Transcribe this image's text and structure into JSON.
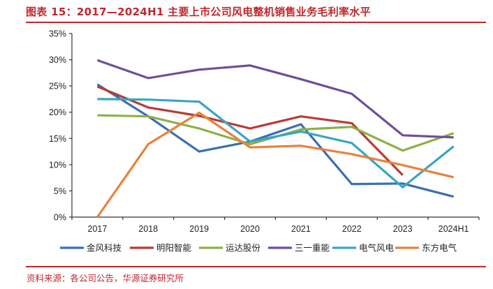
{
  "header": {
    "title": "图表 15：2017—2024H1 主要上市公司风电整机销售业务毛利率水平"
  },
  "footer": {
    "source": "资料来源：各公司公告，华源证券研究所"
  },
  "chart_data": {
    "type": "line",
    "title": "2017—2024H1 主要上市公司风电整机销售业务毛利率水平",
    "xlabel": "",
    "ylabel": "",
    "x": [
      "2017",
      "2018",
      "2019",
      "2020",
      "2021",
      "2022",
      "2023",
      "2024H1"
    ],
    "yticks": [
      "0%",
      "5%",
      "10%",
      "15%",
      "20%",
      "25%",
      "30%",
      "35%"
    ],
    "ylim": [
      0,
      35
    ],
    "grid": false,
    "legend_position": "bottom",
    "series": [
      {
        "name": "金风科技",
        "color": "#3a6fb5",
        "values": [
          25.3,
          19.2,
          12.5,
          14.4,
          17.7,
          6.3,
          6.4,
          3.9
        ]
      },
      {
        "name": "明阳智能",
        "color": "#b93a35",
        "values": [
          24.9,
          20.9,
          19.3,
          16.9,
          19.2,
          17.9,
          8.0,
          null
        ]
      },
      {
        "name": "运达股份",
        "color": "#8cb045",
        "values": [
          19.4,
          19.2,
          16.9,
          13.9,
          16.7,
          17.2,
          12.7,
          16.0
        ]
      },
      {
        "name": "三一重能",
        "color": "#6e4f9a",
        "values": [
          29.9,
          26.5,
          28.1,
          28.9,
          26.3,
          23.5,
          15.6,
          15.2
        ]
      },
      {
        "name": "电气风电",
        "color": "#3aa5c0",
        "values": [
          22.5,
          22.4,
          22.0,
          14.4,
          16.3,
          14.1,
          5.7,
          13.5
        ]
      },
      {
        "name": "东方电气",
        "color": "#e9823a",
        "values": [
          0.0,
          13.9,
          19.9,
          13.3,
          13.6,
          12.0,
          9.9,
          7.6
        ]
      }
    ]
  }
}
